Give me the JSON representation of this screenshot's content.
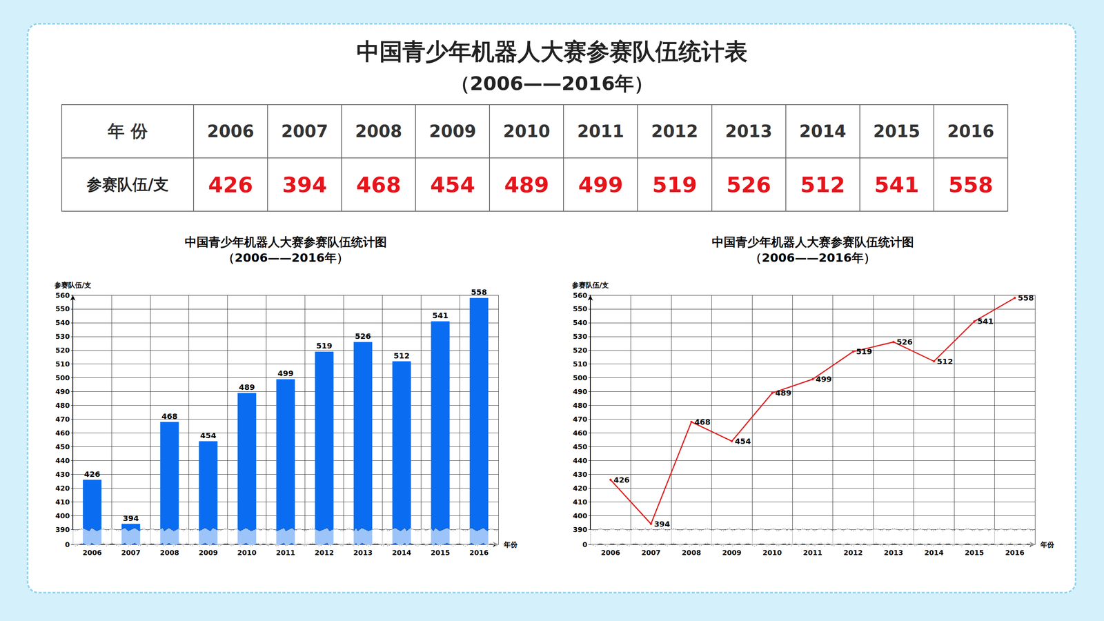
{
  "header": {
    "title": "中国青少年机器人大赛参赛队伍统计表",
    "subtitle": "（2006——2016年）"
  },
  "table": {
    "rows": [
      [
        "年 份",
        "2006",
        "2007",
        "2008",
        "2009",
        "2010",
        "2011",
        "2012",
        "2013",
        "2014",
        "2015",
        "2016"
      ],
      [
        "参赛队伍/支",
        426,
        394,
        468,
        454,
        489,
        499,
        519,
        526,
        512,
        541,
        558
      ]
    ]
  },
  "chart_data": [
    {
      "type": "bar",
      "title": "中国青少年机器人大赛参赛队伍统计图",
      "subtitle": "（2006——2016年）",
      "x_label": "年份",
      "y_label": "参赛队伍/支",
      "categories": [
        "2006",
        "2007",
        "2008",
        "2009",
        "2010",
        "2011",
        "2012",
        "2013",
        "2014",
        "2015",
        "2016"
      ],
      "values": [
        426,
        394,
        468,
        454,
        489,
        499,
        519,
        526,
        512,
        541,
        558
      ],
      "color": "#0a6cf0",
      "ylim": [
        0,
        560
      ],
      "yticks": [
        0,
        390,
        400,
        410,
        420,
        430,
        440,
        450,
        460,
        470,
        480,
        490,
        500,
        510,
        520,
        530,
        540,
        550,
        560
      ],
      "grid": true,
      "data_labels": true
    },
    {
      "type": "line",
      "title": "中国青少年机器人大赛参赛队伍统计图",
      "subtitle": "（2006——2016年）",
      "x_label": "年份",
      "y_label": "参赛队伍/支",
      "categories": [
        "2006",
        "2007",
        "2008",
        "2009",
        "2010",
        "2011",
        "2012",
        "2013",
        "2014",
        "2015",
        "2016"
      ],
      "values": [
        426,
        394,
        468,
        454,
        489,
        499,
        519,
        526,
        512,
        541,
        558
      ],
      "color": "#e02020",
      "marker": "circle",
      "line_style": "solid",
      "ylim": [
        0,
        560
      ],
      "yticks": [
        0,
        390,
        400,
        410,
        420,
        430,
        440,
        450,
        460,
        470,
        480,
        490,
        500,
        510,
        520,
        530,
        540,
        550,
        560
      ],
      "grid": true,
      "data_labels": true
    }
  ]
}
